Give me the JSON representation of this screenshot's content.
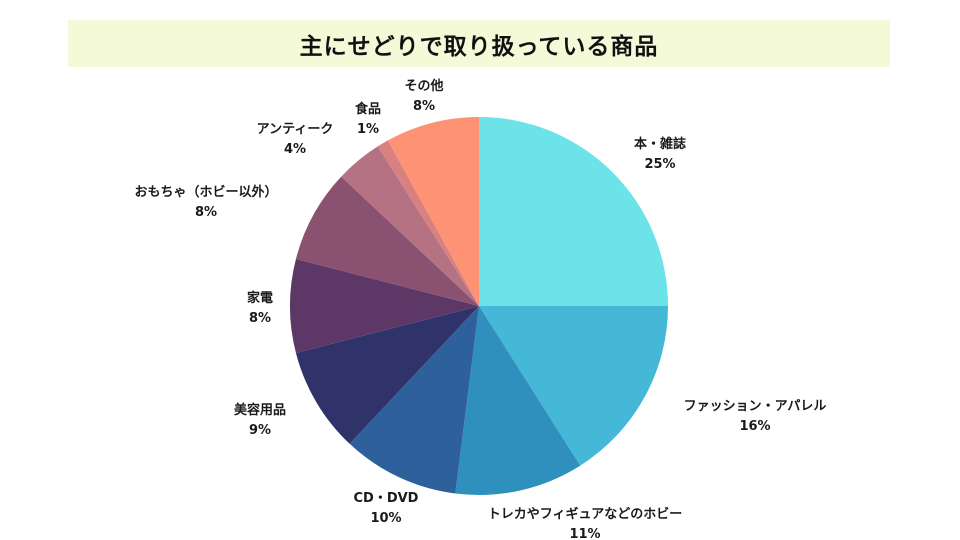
{
  "title": "主にせどりで取り扱っている商品",
  "chart_data": {
    "type": "pie",
    "title": "主にせどりで取り扱っている商品",
    "slices": [
      {
        "label": "本・雑誌",
        "value": 25,
        "value_label": "25%",
        "color": "#6ce3e9"
      },
      {
        "label": "ファッション・アパレル",
        "value": 16,
        "value_label": "16%",
        "color": "#44b8d6"
      },
      {
        "label": "トレカやフィギュアなどのホビー",
        "value": 11,
        "value_label": "11%",
        "color": "#2f8fbd"
      },
      {
        "label": "CD・DVD",
        "value": 10,
        "value_label": "10%",
        "color": "#2e609c"
      },
      {
        "label": "美容用品",
        "value": 9,
        "value_label": "9%",
        "color": "#2f336a"
      },
      {
        "label": "家電",
        "value": 8,
        "value_label": "8%",
        "color": "#5d3866"
      },
      {
        "label": "おもちゃ（ホビー以外）",
        "value": 8,
        "value_label": "8%",
        "color": "#8a5270"
      },
      {
        "label": "アンティーク",
        "value": 4,
        "value_label": "4%",
        "color": "#b57282"
      },
      {
        "label": "食品",
        "value": 1,
        "value_label": "1%",
        "color": "#d98080"
      },
      {
        "label": "その他",
        "value": 8,
        "value_label": "8%",
        "color": "#fd9275"
      }
    ],
    "start_angle": "12 o'clock",
    "direction": "clockwise",
    "legend": "none",
    "labels": "outside"
  }
}
